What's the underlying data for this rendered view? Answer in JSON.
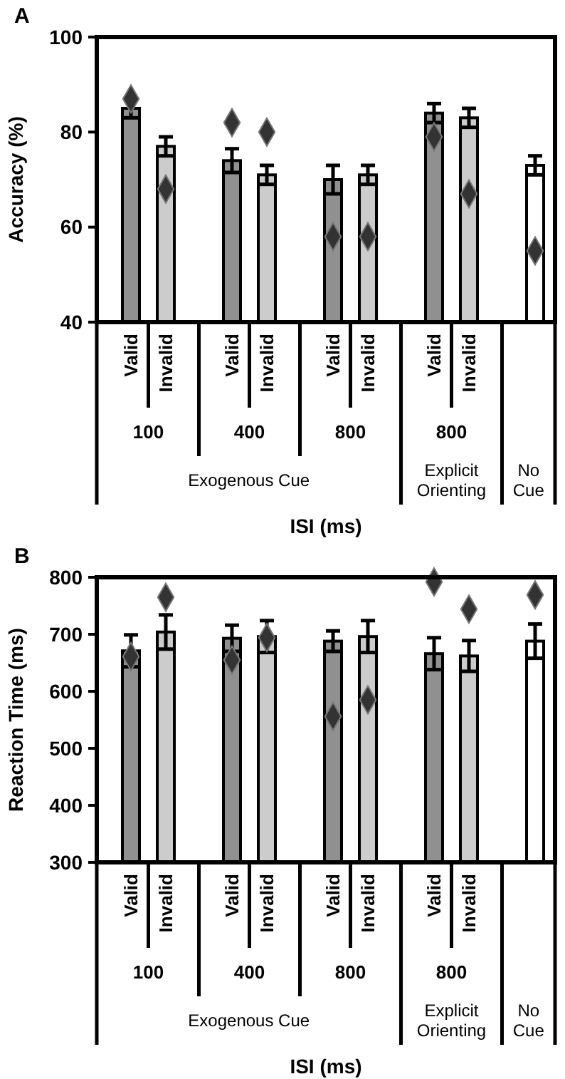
{
  "chart_data": [
    {
      "type": "bar",
      "title": "A",
      "ylabel": "Accuracy (%)",
      "xlabel": "ISI (ms)",
      "categories": [
        "Valid",
        "Invalid",
        "Valid",
        "Invalid",
        "Valid",
        "Invalid",
        "Valid",
        "Invalid",
        null
      ],
      "ylim": [
        40,
        100
      ],
      "yticks": [
        40,
        60,
        80,
        100
      ],
      "grid": false,
      "annotations": [
        "100",
        "400",
        "800",
        "800",
        "Exogenous Cue",
        "Explicit Orienting",
        "No Cue"
      ],
      "series": [
        {
          "colors": [
            "#909090",
            "#cccccc",
            "#909090",
            "#cccccc",
            "#909090",
            "#cccccc",
            "#909090",
            "#cccccc",
            "#ffffff"
          ],
          "values": [
            85,
            77,
            74,
            71,
            70,
            71,
            84,
            83,
            73
          ],
          "errors": [
            2,
            2,
            2.5,
            2,
            3,
            2,
            2,
            2,
            2
          ]
        },
        {
          "type": "scatter",
          "marker": "diamond",
          "color": "#333333",
          "values": [
            87,
            68,
            82,
            80,
            58,
            58,
            79,
            67,
            55
          ]
        }
      ]
    },
    {
      "type": "bar",
      "title": "B",
      "ylabel": "Reaction Time (ms)",
      "xlabel": "ISI (ms)",
      "categories": [
        "Valid",
        "Invalid",
        "Valid",
        "Invalid",
        "Valid",
        "Invalid",
        "Valid",
        "Invalid",
        null
      ],
      "ylim": [
        300,
        800
      ],
      "yticks": [
        300,
        400,
        500,
        600,
        700,
        800
      ],
      "grid": false,
      "annotations": [
        "100",
        "400",
        "800",
        "800",
        "Exogenous Cue",
        "Explicit Orienting",
        "No Cue"
      ],
      "series": [
        {
          "colors": [
            "#909090",
            "#cccccc",
            "#909090",
            "#cccccc",
            "#909090",
            "#cccccc",
            "#909090",
            "#cccccc",
            "#ffffff"
          ],
          "values": [
            671,
            704,
            693,
            696,
            688,
            696,
            666,
            662,
            688
          ],
          "errors": [
            28,
            30,
            23,
            28,
            18,
            28,
            28,
            27,
            30
          ]
        },
        {
          "type": "scatter",
          "marker": "diamond",
          "color": "#333333",
          "values": [
            661,
            765,
            655,
            694,
            556,
            585,
            792,
            744,
            769
          ]
        }
      ]
    }
  ]
}
